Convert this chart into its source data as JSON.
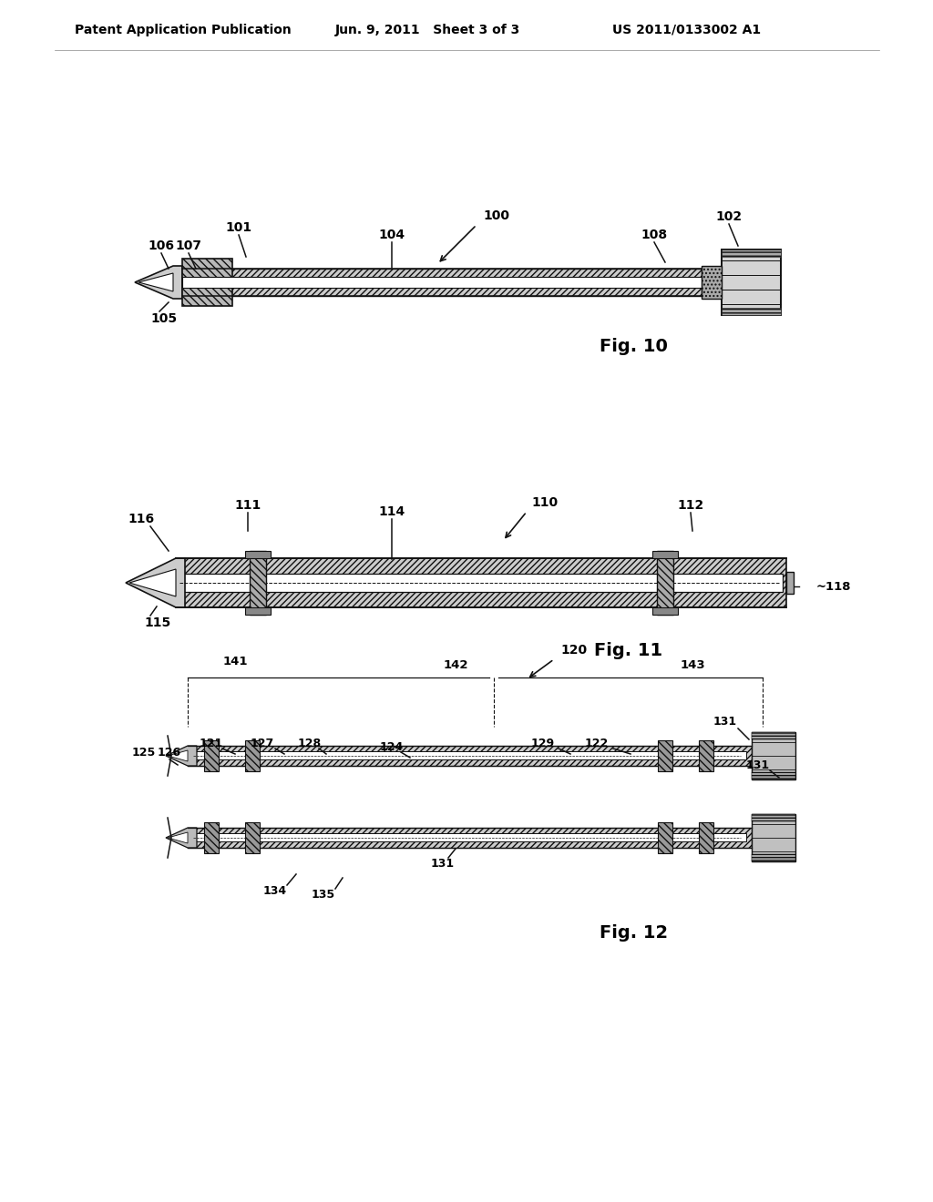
{
  "bg_color": "#ffffff",
  "header_left": "Patent Application Publication",
  "header_center": "Jun. 9, 2011   Sheet 3 of 3",
  "header_right": "US 2011/0133002 A1",
  "fig10_label": "Fig. 10",
  "fig11_label": "Fig. 11",
  "fig12_label": "Fig. 12",
  "lc": "#111111",
  "hfc": "#cccccc",
  "wfc": "#ffffff"
}
